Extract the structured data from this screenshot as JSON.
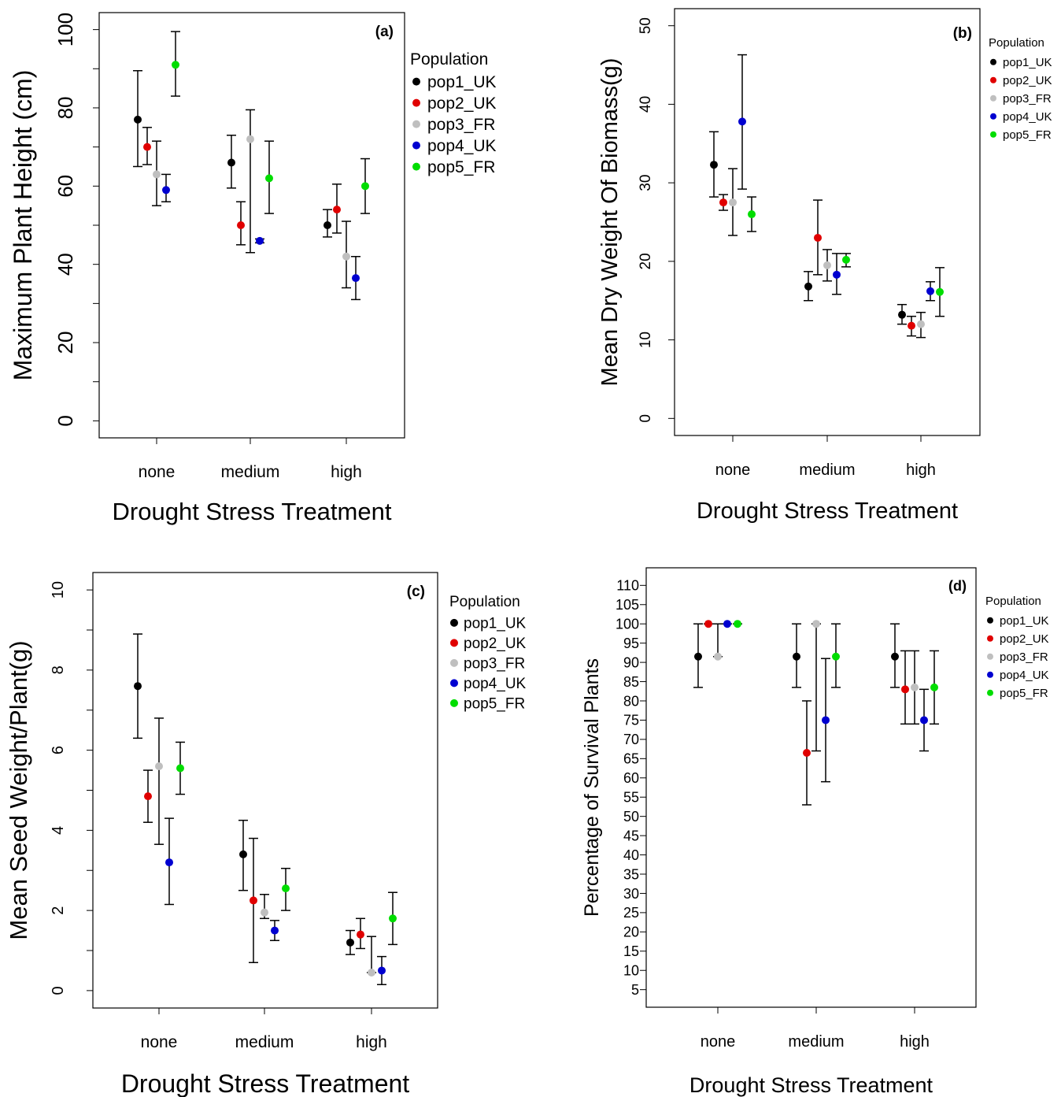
{
  "legend_title": "Population",
  "populations": [
    "pop1_UK",
    "pop2_UK",
    "pop3_FR",
    "pop4_UK",
    "pop5_FR"
  ],
  "colors": {
    "pop1_UK": "#000000",
    "pop2_UK": "#e00000",
    "pop3_FR": "#bfbfbf",
    "pop4_UK": "#0000d0",
    "pop5_FR": "#00dd00"
  },
  "chart_data": [
    {
      "type": "scatter",
      "panel_label": "(a)",
      "xlabel": "Drought Stress Treatment",
      "ylabel": "Maximum Plant Height (cm)",
      "categories": [
        "none",
        "medium",
        "high"
      ],
      "ylim": [
        0,
        100
      ],
      "yticks": [
        0,
        20,
        40,
        60,
        80,
        100
      ],
      "legend": "top-right, outside plot",
      "series": [
        {
          "name": "pop1_UK",
          "values": [
            77,
            66,
            50
          ],
          "lower": [
            65,
            59.5,
            47
          ],
          "upper": [
            89.5,
            73,
            54
          ]
        },
        {
          "name": "pop2_UK",
          "values": [
            70,
            50,
            54
          ],
          "lower": [
            65.5,
            45,
            48
          ],
          "upper": [
            75,
            56,
            60.5
          ]
        },
        {
          "name": "pop3_FR",
          "values": [
            63,
            72,
            42
          ],
          "lower": [
            55,
            43,
            34
          ],
          "upper": [
            71.5,
            79.5,
            51
          ]
        },
        {
          "name": "pop4_UK",
          "values": [
            59,
            46,
            36.5
          ],
          "lower": [
            56,
            45.5,
            31
          ],
          "upper": [
            63,
            46.5,
            42
          ]
        },
        {
          "name": "pop5_FR",
          "values": [
            91,
            62,
            60
          ],
          "lower": [
            83,
            53,
            53
          ],
          "upper": [
            99.5,
            71.5,
            67
          ]
        }
      ]
    },
    {
      "type": "scatter",
      "panel_label": "(b)",
      "xlabel": "Drought Stress Treatment",
      "ylabel": "Mean Dry Weight Of Biomass(g)",
      "categories": [
        "none",
        "medium",
        "high"
      ],
      "ylim": [
        0,
        50
      ],
      "yticks": [
        0,
        10,
        20,
        30,
        40,
        50
      ],
      "legend": "top-right, outside plot",
      "series": [
        {
          "name": "pop1_UK",
          "values": [
            32.3,
            16.8,
            13.2
          ],
          "lower": [
            28.2,
            15,
            12
          ],
          "upper": [
            36.5,
            18.7,
            14.5
          ]
        },
        {
          "name": "pop2_UK",
          "values": [
            27.5,
            23,
            11.8
          ],
          "lower": [
            26.5,
            18.3,
            10.5
          ],
          "upper": [
            28.5,
            27.8,
            13
          ]
        },
        {
          "name": "pop3_FR",
          "values": [
            27.5,
            19.5,
            12
          ],
          "lower": [
            23.3,
            17.5,
            10.3
          ],
          "upper": [
            31.8,
            21.5,
            13.5
          ]
        },
        {
          "name": "pop4_UK",
          "values": [
            37.8,
            18.3,
            16.2
          ],
          "lower": [
            29.2,
            15.8,
            15
          ],
          "upper": [
            46.3,
            21,
            17.4
          ]
        },
        {
          "name": "pop5_FR",
          "values": [
            26,
            20.2,
            16.1
          ],
          "lower": [
            23.8,
            19.3,
            13
          ],
          "upper": [
            28.2,
            21,
            19.2
          ]
        }
      ]
    },
    {
      "type": "scatter",
      "panel_label": "(c)",
      "xlabel": "Drought Stress Treatment",
      "ylabel": "Mean Seed Weight/Plant(g)",
      "categories": [
        "none",
        "medium",
        "high"
      ],
      "ylim": [
        0,
        10
      ],
      "yticks": [
        0,
        2,
        4,
        6,
        8,
        10
      ],
      "legend": "top-right, outside plot",
      "series": [
        {
          "name": "pop1_UK",
          "values": [
            7.6,
            3.4,
            1.2
          ],
          "lower": [
            6.3,
            2.5,
            0.9
          ],
          "upper": [
            8.9,
            4.25,
            1.5
          ]
        },
        {
          "name": "pop2_UK",
          "values": [
            4.85,
            2.25,
            1.4
          ],
          "lower": [
            4.2,
            0.7,
            1.05
          ],
          "upper": [
            5.5,
            3.8,
            1.8
          ]
        },
        {
          "name": "pop3_FR",
          "values": [
            5.6,
            1.95,
            0.45
          ],
          "lower": [
            3.65,
            1.8,
            0.45
          ],
          "upper": [
            6.8,
            2.4,
            1.35
          ]
        },
        {
          "name": "pop4_UK",
          "values": [
            3.2,
            1.5,
            0.5
          ],
          "lower": [
            2.15,
            1.25,
            0.15
          ],
          "upper": [
            4.3,
            1.75,
            0.85
          ]
        },
        {
          "name": "pop5_FR",
          "values": [
            5.55,
            2.55,
            1.8
          ],
          "lower": [
            4.9,
            2,
            1.15
          ],
          "upper": [
            6.2,
            3.05,
            2.45
          ]
        }
      ]
    },
    {
      "type": "scatter",
      "panel_label": "(d)",
      "xlabel": "Drought Stress Treatment",
      "ylabel": "Percentage of Survival Plants",
      "categories": [
        "none",
        "medium",
        "high"
      ],
      "ylim": [
        5,
        110
      ],
      "yticks": [
        5,
        10,
        15,
        20,
        25,
        30,
        35,
        40,
        45,
        50,
        55,
        60,
        65,
        70,
        75,
        80,
        85,
        90,
        95,
        100,
        105,
        110
      ],
      "legend": "top-right, outside plot",
      "series": [
        {
          "name": "pop1_UK",
          "values": [
            91.5,
            91.5,
            91.5
          ],
          "lower": [
            83.5,
            83.5,
            83.5
          ],
          "upper": [
            100,
            100,
            100
          ]
        },
        {
          "name": "pop2_UK",
          "values": [
            100,
            66.5,
            83
          ],
          "lower": [
            100,
            53,
            74
          ],
          "upper": [
            100,
            80,
            93
          ]
        },
        {
          "name": "pop3_FR",
          "values": [
            91.5,
            100,
            83.5
          ],
          "lower": [
            91.5,
            67,
            74
          ],
          "upper": [
            100,
            100,
            93
          ]
        },
        {
          "name": "pop4_UK",
          "values": [
            100,
            75,
            75
          ],
          "lower": [
            100,
            59,
            67
          ],
          "upper": [
            100,
            91,
            83
          ]
        },
        {
          "name": "pop5_FR",
          "values": [
            100,
            91.5,
            83.5
          ],
          "lower": [
            100,
            83.5,
            74
          ],
          "upper": [
            100,
            100,
            93
          ]
        }
      ]
    }
  ]
}
